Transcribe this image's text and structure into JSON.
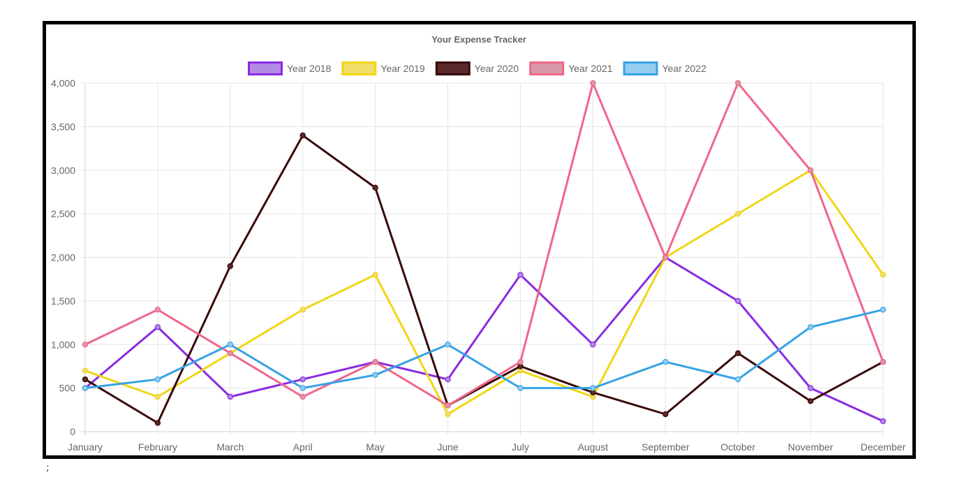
{
  "trailing_text": ";",
  "chart_data": {
    "type": "line",
    "title": "Your Expense Tracker",
    "xlabel": "",
    "ylabel": "",
    "categories": [
      "January",
      "February",
      "March",
      "April",
      "May",
      "June",
      "July",
      "August",
      "September",
      "October",
      "November",
      "December"
    ],
    "ylim": [
      0,
      4000
    ],
    "yticks": [
      0,
      500,
      1000,
      1500,
      2000,
      2500,
      3000,
      3500,
      4000
    ],
    "ytick_labels": [
      "0",
      "500",
      "1,000",
      "1,500",
      "2,000",
      "2,500",
      "3,000",
      "3,500",
      "4,000"
    ],
    "grid": true,
    "legend_position": "top",
    "series": [
      {
        "name": "Year 2018",
        "color": "#8a2be2",
        "fill": "#b28ae6",
        "values": [
          500,
          1200,
          400,
          600,
          800,
          600,
          1800,
          1000,
          2000,
          1500,
          500,
          120
        ]
      },
      {
        "name": "Year 2019",
        "color": "#f0d616",
        "fill": "#f0dd6a",
        "values": [
          700,
          400,
          900,
          1400,
          1800,
          200,
          700,
          400,
          2000,
          2500,
          3000,
          1800
        ]
      },
      {
        "name": "Year 2020",
        "color": "#3a0808",
        "fill": "#5a2a2a",
        "values": [
          600,
          100,
          1900,
          3400,
          2800,
          300,
          750,
          450,
          200,
          900,
          350,
          800
        ]
      },
      {
        "name": "Year 2021",
        "color": "#f06688",
        "fill": "#d898a8",
        "values": [
          1000,
          1400,
          900,
          400,
          800,
          300,
          800,
          4000,
          2000,
          4000,
          3000,
          800
        ]
      },
      {
        "name": "Year 2022",
        "color": "#36a2e6",
        "fill": "#94cdf0",
        "values": [
          500,
          600,
          1000,
          500,
          650,
          1000,
          500,
          500,
          800,
          600,
          1200,
          1400
        ]
      }
    ]
  }
}
